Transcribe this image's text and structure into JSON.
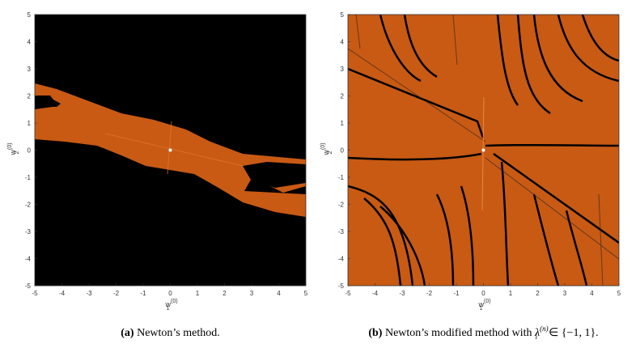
{
  "panels": [
    {
      "xlim": [
        -5,
        5
      ],
      "ylim": [
        -5,
        5
      ],
      "xticks": [
        -5,
        -4,
        -3,
        -2,
        -1,
        0,
        1,
        2,
        3,
        4,
        5
      ],
      "yticks": [
        -5,
        -4,
        -3,
        -2,
        -1,
        0,
        1,
        2,
        3,
        4,
        5
      ],
      "xlabel": {
        "base": "w",
        "sub": "1",
        "sup": "(0)"
      },
      "ylabel": {
        "base": "w",
        "sub": "2",
        "sup": "(0)"
      },
      "caption": {
        "label": "(a)",
        "text": "Newton’s method."
      }
    },
    {
      "xlim": [
        -5,
        5
      ],
      "ylim": [
        -5,
        5
      ],
      "xticks": [
        -5,
        -4,
        -3,
        -2,
        -1,
        0,
        1,
        2,
        3,
        4,
        5
      ],
      "yticks": [
        -5,
        -4,
        -3,
        -2,
        -1,
        0,
        1,
        2,
        3,
        4,
        5
      ],
      "xlabel": {
        "base": "w",
        "sub": "1",
        "sup": "(0)"
      },
      "ylabel": {
        "base": "w",
        "sub": "2",
        "sup": "(0)"
      },
      "caption": {
        "label": "(b)",
        "text": "Newton’s modified method with",
        "symbol": "λ",
        "sub": "i",
        "sup": "(n)",
        "tail": "∈ {−1, 1}."
      }
    }
  ]
}
